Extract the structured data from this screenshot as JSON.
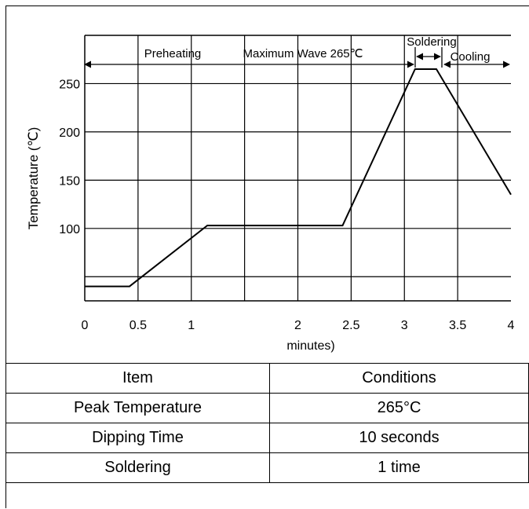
{
  "chart_data": {
    "type": "line",
    "title": "",
    "xlabel": "minutes)",
    "ylabel": "Temperature (℃)",
    "xlim": [
      0,
      4
    ],
    "ylim": [
      25,
      300
    ],
    "x_ticks": [
      "0",
      "0.5",
      "1",
      "2",
      "2.5",
      "3",
      "3.5",
      "4"
    ],
    "y_ticks": [
      "100",
      "150",
      "200",
      "250"
    ],
    "series": [
      {
        "x": [
          0,
          0.42,
          1.15,
          2.42,
          3.1,
          3.3,
          4.0
        ],
        "y": [
          40,
          40,
          103,
          103,
          265,
          265,
          135
        ]
      }
    ],
    "phase_labels": {
      "preheating": "Preheating",
      "maximum_wave": "Maximum Wave 265℃",
      "soldering": "Soldering",
      "cooling": "Cooling"
    },
    "grid": true
  },
  "table": {
    "header": [
      "Item",
      "Conditions"
    ],
    "rows": [
      [
        "Peak Temperature",
        "265°C"
      ],
      [
        "Dipping Time",
        "10 seconds"
      ],
      [
        "Soldering",
        "1 time"
      ]
    ]
  }
}
